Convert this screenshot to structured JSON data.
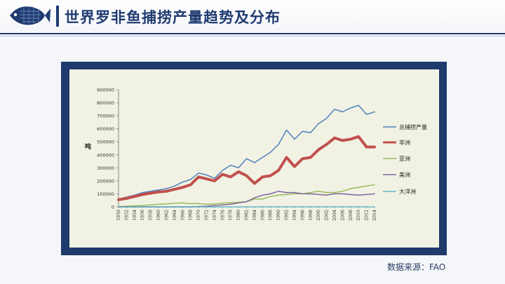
{
  "page": {
    "title": "世界罗非鱼捕捞产量趋势及分布",
    "source_note": "数据来源：FAO"
  },
  "colors": {
    "brand_navy": "#1f3b70",
    "chart_panel": "#f1f2e3"
  },
  "icons": {
    "logo": "tilapia-fish-icon"
  },
  "chart_data": {
    "type": "line",
    "title": "",
    "xlabel": "",
    "ylabel": "吨",
    "ylim": [
      0,
      900000
    ],
    "yticks": [
      0,
      100000,
      200000,
      300000,
      400000,
      500000,
      600000,
      700000,
      800000,
      900000
    ],
    "ytick_labels": [
      "0",
      "100000",
      "200000",
      "300000",
      "400000",
      "500000",
      "600000",
      "700000",
      "800000",
      "900000"
    ],
    "x_tick_labels": [
      "1950",
      "1952",
      "1954",
      "1956",
      "1958",
      "1960",
      "1962",
      "1964",
      "1966",
      "1968",
      "1970",
      "1972",
      "1974",
      "1976",
      "1978",
      "1980",
      "1982",
      "1984",
      "1986",
      "1988",
      "1990",
      "1992",
      "1994",
      "1996",
      "1998",
      "2000",
      "2002",
      "2004",
      "2006",
      "2008",
      "2010",
      "2012",
      "2014"
    ],
    "grid": false,
    "legend_position": "right",
    "x": [
      1950,
      1952,
      1954,
      1956,
      1958,
      1960,
      1962,
      1964,
      1966,
      1968,
      1970,
      1972,
      1974,
      1976,
      1978,
      1980,
      1982,
      1984,
      1986,
      1988,
      1990,
      1992,
      1994,
      1996,
      1998,
      2000,
      2002,
      2004,
      2006,
      2008,
      2010,
      2012,
      2014
    ],
    "series": [
      {
        "name": "总捕捞产量",
        "color": "#4f81bd",
        "width": 1.5,
        "values": [
          60000,
          75000,
          90000,
          110000,
          120000,
          130000,
          140000,
          160000,
          190000,
          210000,
          260000,
          245000,
          220000,
          280000,
          320000,
          300000,
          370000,
          340000,
          380000,
          420000,
          480000,
          590000,
          520000,
          580000,
          570000,
          640000,
          680000,
          750000,
          730000,
          760000,
          780000,
          710000,
          730000
        ]
      },
      {
        "name": "非洲",
        "color": "#c0504d",
        "width": 4,
        "values": [
          55000,
          65000,
          80000,
          95000,
          105000,
          115000,
          120000,
          135000,
          150000,
          170000,
          230000,
          215000,
          200000,
          250000,
          230000,
          270000,
          240000,
          180000,
          230000,
          240000,
          280000,
          380000,
          310000,
          370000,
          380000,
          440000,
          480000,
          530000,
          510000,
          520000,
          540000,
          460000,
          460000
        ]
      },
      {
        "name": "亚洲",
        "color": "#9bbb59",
        "width": 1.5,
        "values": [
          2000,
          5000,
          8000,
          10000,
          15000,
          20000,
          22000,
          28000,
          30000,
          25000,
          25000,
          20000,
          22000,
          28000,
          32000,
          35000,
          40000,
          60000,
          60000,
          80000,
          90000,
          95000,
          100000,
          100000,
          110000,
          120000,
          110000,
          110000,
          120000,
          140000,
          150000,
          160000,
          170000
        ]
      },
      {
        "name": "美洲",
        "color": "#8064a2",
        "width": 1.5,
        "values": [
          0,
          0,
          0,
          0,
          0,
          0,
          0,
          0,
          0,
          0,
          2000,
          5000,
          10000,
          15000,
          20000,
          30000,
          40000,
          70000,
          90000,
          100000,
          120000,
          110000,
          110000,
          100000,
          100000,
          95000,
          90000,
          100000,
          100000,
          95000,
          90000,
          95000,
          100000
        ]
      },
      {
        "name": "大洋洲",
        "color": "#4bacc6",
        "width": 1.2,
        "values": [
          0,
          0,
          0,
          0,
          0,
          0,
          0,
          0,
          0,
          0,
          0,
          0,
          0,
          0,
          0,
          0,
          0,
          0,
          0,
          0,
          0,
          0,
          0,
          0,
          0,
          0,
          0,
          0,
          0,
          0,
          0,
          0,
          0
        ]
      }
    ]
  }
}
